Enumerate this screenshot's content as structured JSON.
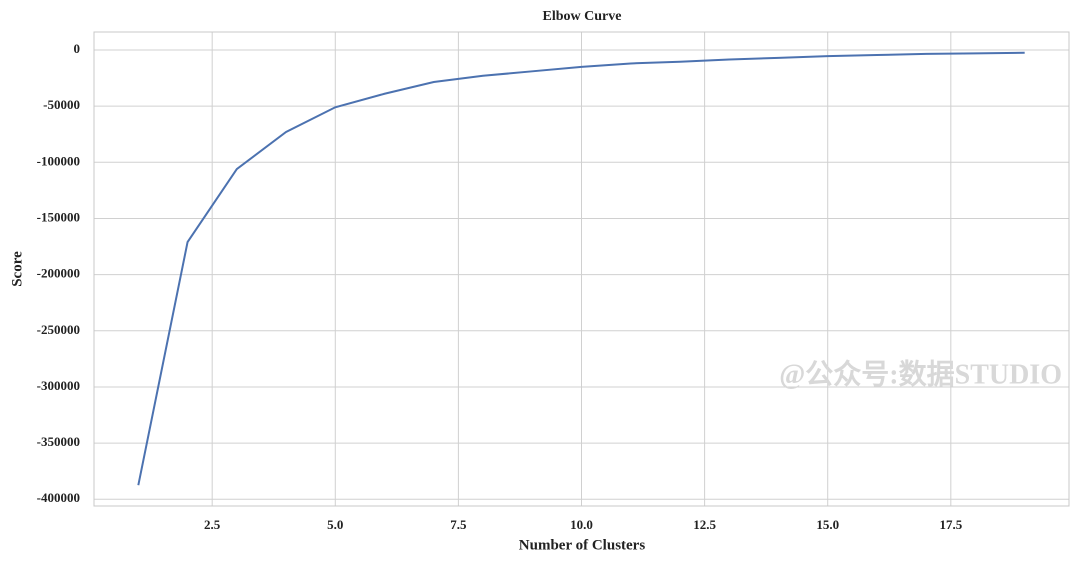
{
  "chart_data": {
    "type": "line",
    "title": "Elbow Curve",
    "xlabel": "Number of Clusters",
    "ylabel": "Score",
    "annotation": "@公众号:数据STUDIO",
    "x": [
      1,
      2,
      3,
      4,
      5,
      6,
      7,
      8,
      9,
      10,
      11,
      12,
      13,
      14,
      15,
      16,
      17,
      18,
      19
    ],
    "series": [
      {
        "name": "Score",
        "color": "#4c72b0",
        "values": [
          -387500,
          -171000,
          -106000,
          -73000,
          -51000,
          -39000,
          -28500,
          -23000,
          -19000,
          -15000,
          -12000,
          -10500,
          -8500,
          -7000,
          -5500,
          -4500,
          -3500,
          -3000,
          -2500
        ]
      }
    ],
    "xlim": [
      0.1,
      19.9
    ],
    "ylim": [
      -406000,
      16000
    ],
    "xticks": [
      2.5,
      {
        "value": 5,
        "label": "5.0"
      },
      7.5,
      {
        "value": 10,
        "label": "10.0"
      },
      12.5,
      {
        "value": 15,
        "label": "15.0"
      },
      17.5
    ],
    "yticks": [
      0,
      -50000,
      -100000,
      -150000,
      -200000,
      -250000,
      -300000,
      -350000,
      -400000
    ],
    "grid": true
  }
}
